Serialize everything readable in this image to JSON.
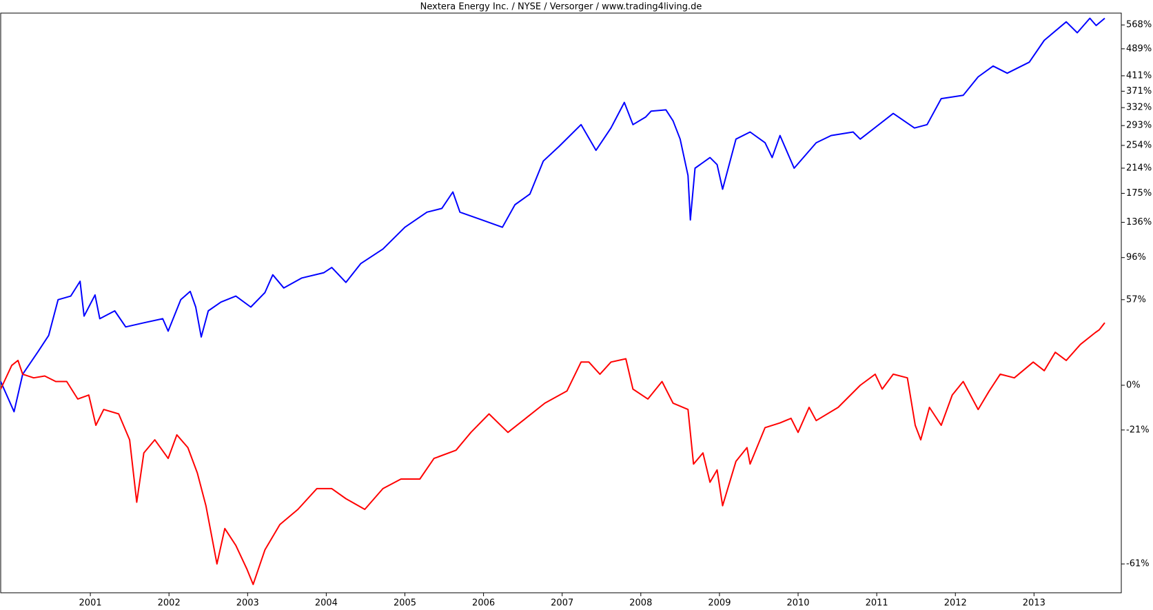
{
  "chart_data": {
    "type": "line",
    "title": "Nextera Energy Inc. / NYSE / Versorger / www.trading4living.de",
    "yscale": "log",
    "xlim": [
      1999.86,
      2014.11
    ],
    "xticks": [
      2001,
      2002,
      2003,
      2004,
      2005,
      2006,
      2007,
      2008,
      2009,
      2010,
      2011,
      2012,
      2013
    ],
    "ylim": [
      -66.5,
      611
    ],
    "yticks": [
      {
        "value": 568,
        "label": "568%"
      },
      {
        "value": 489,
        "label": "489%"
      },
      {
        "value": 411,
        "label": "411%"
      },
      {
        "value": 371,
        "label": "371%"
      },
      {
        "value": 332,
        "label": "332%"
      },
      {
        "value": 293,
        "label": "293%"
      },
      {
        "value": 254,
        "label": "254%"
      },
      {
        "value": 214,
        "label": "214%"
      },
      {
        "value": 175,
        "label": "175%"
      },
      {
        "value": 136,
        "label": "136%"
      },
      {
        "value": 96,
        "label": "96%"
      },
      {
        "value": 57,
        "label": "57%"
      },
      {
        "value": 0,
        "label": "0%"
      },
      {
        "value": -21,
        "label": "-21%"
      },
      {
        "value": -61,
        "label": "-61%"
      }
    ],
    "grid": false,
    "series": [
      {
        "color": "#0000ff",
        "x": [
          1999.86,
          2000.03,
          2000.14,
          2000.33,
          2000.47,
          2000.59,
          2000.75,
          2000.87,
          2000.92,
          2001.06,
          2001.12,
          2001.31,
          2001.45,
          2001.68,
          2001.92,
          2001.99,
          2002.15,
          2002.27,
          2002.34,
          2002.41,
          2002.5,
          2002.66,
          2002.85,
          2003.04,
          2003.22,
          2003.32,
          2003.46,
          2003.69,
          2003.97,
          2004.07,
          2004.25,
          2004.44,
          2004.72,
          2005.0,
          2005.28,
          2005.47,
          2005.61,
          2005.7,
          2005.98,
          2006.24,
          2006.4,
          2006.59,
          2006.76,
          2006.96,
          2007.24,
          2007.43,
          2007.62,
          2007.79,
          2007.9,
          2008.06,
          2008.13,
          2008.32,
          2008.41,
          2008.5,
          2008.6,
          2008.63,
          2008.69,
          2008.88,
          2008.97,
          2009.04,
          2009.21,
          2009.39,
          2009.58,
          2009.67,
          2009.77,
          2009.95,
          2010.23,
          2010.42,
          2010.7,
          2010.79,
          2011.21,
          2011.48,
          2011.64,
          2011.82,
          2012.1,
          2012.29,
          2012.48,
          2012.66,
          2012.94,
          2013.13,
          2013.41,
          2013.55,
          2013.71,
          2013.79,
          2013.9
        ],
        "values": [
          2,
          -13,
          6,
          19,
          30,
          57,
          60,
          73,
          44,
          61,
          42,
          48,
          36,
          39,
          42,
          33,
          57,
          64,
          51,
          29,
          48,
          55,
          60,
          51,
          63,
          79,
          67,
          76,
          81,
          86,
          72,
          90,
          105,
          130,
          149,
          154,
          177,
          149,
          139,
          130,
          159,
          174,
          226,
          252,
          295,
          245,
          288,
          344,
          295,
          311,
          324,
          327,
          303,
          266,
          202,
          139,
          214,
          232,
          220,
          181,
          266,
          280,
          259,
          232,
          273,
          214,
          259,
          273,
          280,
          266,
          319,
          288,
          295,
          353,
          361,
          408,
          438,
          418,
          449,
          516,
          579,
          541,
          592,
          566,
          592
        ]
      },
      {
        "color": "#ff0000",
        "x": [
          1999.86,
          2000.0,
          2000.08,
          2000.14,
          2000.28,
          2000.42,
          2000.56,
          2000.7,
          2000.84,
          2000.98,
          2001.07,
          2001.17,
          2001.36,
          2001.5,
          2001.59,
          2001.68,
          2001.82,
          2001.99,
          2002.1,
          2002.24,
          2002.36,
          2002.47,
          2002.61,
          2002.71,
          2002.85,
          2002.99,
          2003.07,
          2003.22,
          2003.41,
          2003.64,
          2003.88,
          2004.07,
          2004.25,
          2004.49,
          2004.72,
          2004.95,
          2005.19,
          2005.37,
          2005.65,
          2005.84,
          2006.07,
          2006.31,
          2006.5,
          2006.78,
          2007.06,
          2007.24,
          2007.34,
          2007.48,
          2007.62,
          2007.81,
          2007.9,
          2008.09,
          2008.27,
          2008.41,
          2008.6,
          2008.67,
          2008.79,
          2008.88,
          2008.97,
          2009.04,
          2009.21,
          2009.35,
          2009.39,
          2009.58,
          2009.77,
          2009.91,
          2010.0,
          2010.14,
          2010.23,
          2010.51,
          2010.79,
          2010.98,
          2011.07,
          2011.21,
          2011.39,
          2011.49,
          2011.56,
          2011.67,
          2011.82,
          2011.96,
          2012.1,
          2012.29,
          2012.43,
          2012.57,
          2012.75,
          2012.99,
          2013.13,
          2013.27,
          2013.41,
          2013.59,
          2013.78,
          2013.83,
          2013.9
        ],
        "values": [
          -2,
          11,
          14,
          6,
          4,
          5,
          2,
          2,
          -7,
          -5,
          -19,
          -12,
          -14,
          -25,
          -46,
          -30,
          -25,
          -32,
          -23,
          -28,
          -37,
          -47,
          -61,
          -53,
          -57,
          -62,
          -65,
          -58,
          -52,
          -48,
          -42,
          -42,
          -45,
          -48,
          -42,
          -39,
          -39,
          -32,
          -29,
          -22,
          -14,
          -22,
          -17,
          -9,
          -3,
          13,
          13,
          6,
          13,
          15,
          -2,
          -7,
          2,
          -9,
          -12,
          -34,
          -30,
          -40,
          -36,
          -47,
          -33,
          -28,
          -34,
          -20,
          -18,
          -16,
          -22,
          -11,
          -17,
          -11,
          0,
          6,
          -2,
          6,
          4,
          -19,
          -25,
          -11,
          -19,
          -5,
          2,
          -12,
          -3,
          6,
          4,
          13,
          8,
          19,
          14,
          24,
          32,
          34,
          39
        ]
      }
    ]
  }
}
